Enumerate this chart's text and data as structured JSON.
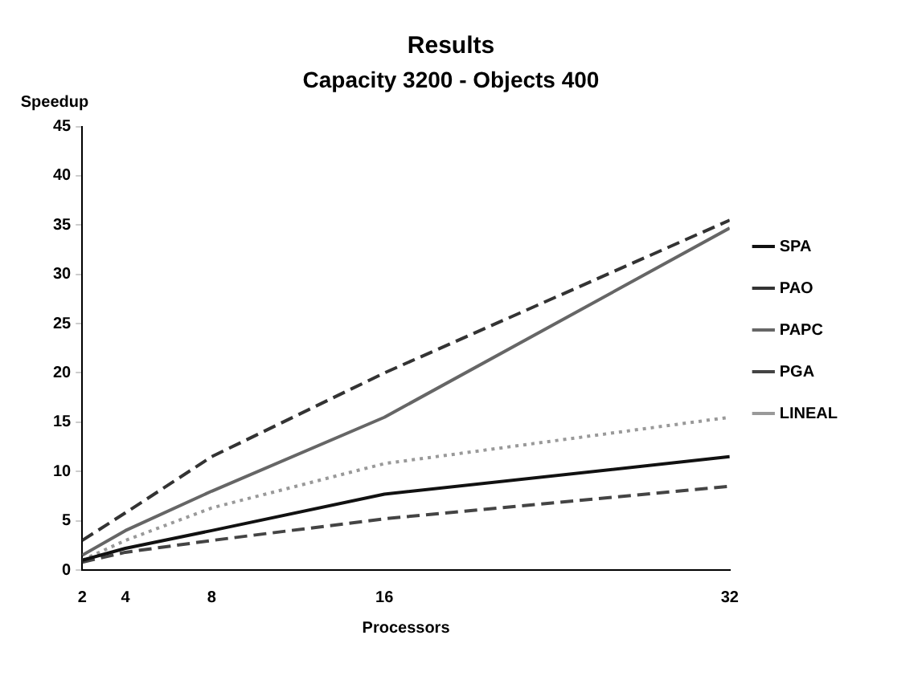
{
  "chart_data": {
    "type": "line",
    "title": "Results",
    "subtitle": "Capacity 3200 - Objects 400",
    "xlabel": "Processors",
    "ylabel": "Speedup",
    "x": [
      2,
      4,
      8,
      16,
      32
    ],
    "series": [
      {
        "name": "SPA",
        "color": "#111111",
        "line_style": "solid",
        "values": [
          1,
          2.2,
          4,
          7.7,
          11.5
        ]
      },
      {
        "name": "PAO",
        "color": "#333333",
        "line_style": "dashed",
        "values": [
          3,
          5.8,
          11.5,
          20,
          35.5
        ]
      },
      {
        "name": "PAPC",
        "color": "#666666",
        "line_style": "solid",
        "values": [
          1.5,
          4,
          8,
          15.5,
          34.7
        ]
      },
      {
        "name": "PGA",
        "color": "#444444",
        "line_style": "dashed",
        "values": [
          0.8,
          1.8,
          3,
          5.2,
          8.5
        ]
      },
      {
        "name": "LINEAL",
        "color": "#999999",
        "line_style": "dotted",
        "values": [
          1,
          3,
          6.3,
          10.8,
          15.5
        ]
      }
    ],
    "xlim": [
      2,
      32
    ],
    "xticks": [
      2,
      4,
      8,
      16,
      32
    ],
    "ylim": [
      0,
      45
    ],
    "yticks": [
      0,
      5,
      10,
      15,
      20,
      25,
      30,
      35,
      40,
      45
    ],
    "grid": false,
    "legend": "right",
    "marker": "none"
  }
}
